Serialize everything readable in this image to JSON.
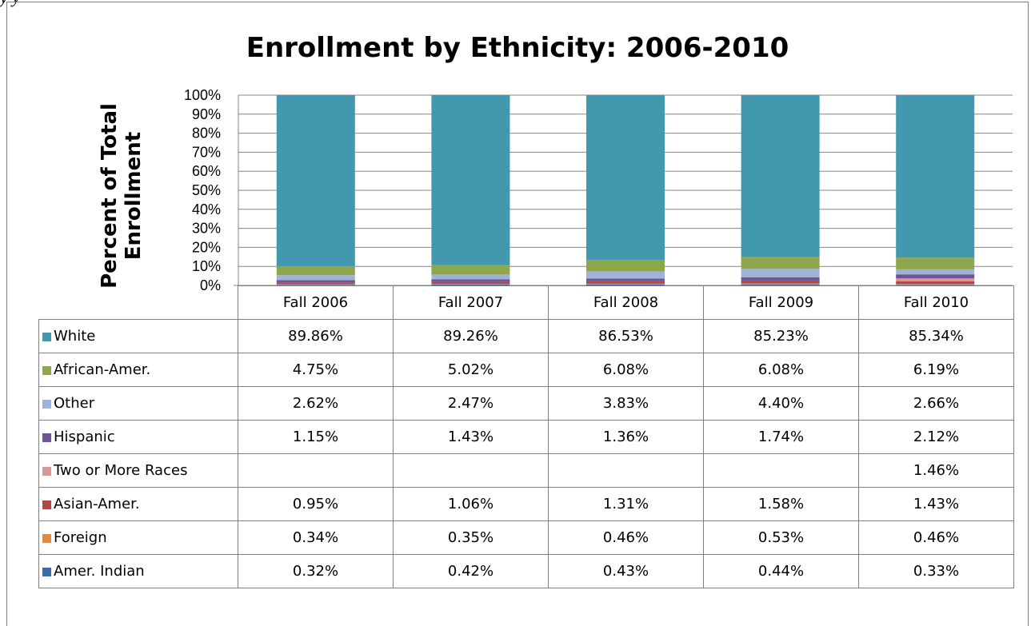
{
  "header_fragment": "y      y",
  "chart_data": {
    "type": "bar",
    "stacked": true,
    "percent_stacked": true,
    "title": "Enrollment by Ethnicity: 2006-2010",
    "ylabel_lines": [
      "Percent of Total",
      "Enrollment"
    ],
    "ylim": [
      0,
      100
    ],
    "yticks": [
      "100%",
      "90%",
      "80%",
      "70%",
      "60%",
      "50%",
      "40%",
      "30%",
      "20%",
      "10%",
      "0%"
    ],
    "grid": true,
    "legend": "table-below",
    "categories": [
      "Fall 2006",
      "Fall 2007",
      "Fall 2008",
      "Fall 2009",
      "Fall 2010"
    ],
    "series": [
      {
        "name": "White",
        "color": "#4198AF",
        "values": [
          89.86,
          89.26,
          86.53,
          85.23,
          85.34
        ],
        "labels": [
          "89.86%",
          "89.26%",
          "86.53%",
          "85.23%",
          "85.34%"
        ]
      },
      {
        "name": "African-Amer.",
        "color": "#8EA64E",
        "values": [
          4.75,
          5.02,
          6.08,
          6.08,
          6.19
        ],
        "labels": [
          "4.75%",
          "5.02%",
          "6.08%",
          "6.08%",
          "6.19%"
        ]
      },
      {
        "name": "Other",
        "color": "#9FB3D9",
        "values": [
          2.62,
          2.47,
          3.83,
          4.4,
          2.66
        ],
        "labels": [
          "2.62%",
          "2.47%",
          "3.83%",
          "4.40%",
          "2.66%"
        ]
      },
      {
        "name": "Hispanic",
        "color": "#6C5594",
        "values": [
          1.15,
          1.43,
          1.36,
          1.74,
          2.12
        ],
        "labels": [
          "1.15%",
          "1.43%",
          "1.36%",
          "1.74%",
          "2.12%"
        ]
      },
      {
        "name": "Two or More Races",
        "color": "#DA9694",
        "values": [
          null,
          null,
          null,
          null,
          1.46
        ],
        "labels": [
          "",
          "",
          "",
          "",
          "1.46%"
        ]
      },
      {
        "name": "Asian-Amer.",
        "color": "#B14747",
        "values": [
          0.95,
          1.06,
          1.31,
          1.58,
          1.43
        ],
        "labels": [
          "0.95%",
          "1.06%",
          "1.31%",
          "1.58%",
          "1.43%"
        ]
      },
      {
        "name": "Foreign",
        "color": "#E48A3C",
        "values": [
          0.34,
          0.35,
          0.46,
          0.53,
          0.46
        ],
        "labels": [
          "0.34%",
          "0.35%",
          "0.46%",
          "0.53%",
          "0.46%"
        ]
      },
      {
        "name": "Amer. Indian",
        "color": "#3D6BA5",
        "values": [
          0.32,
          0.42,
          0.43,
          0.44,
          0.33
        ],
        "labels": [
          "0.32%",
          "0.42%",
          "0.43%",
          "0.44%",
          "0.33%"
        ]
      }
    ]
  }
}
